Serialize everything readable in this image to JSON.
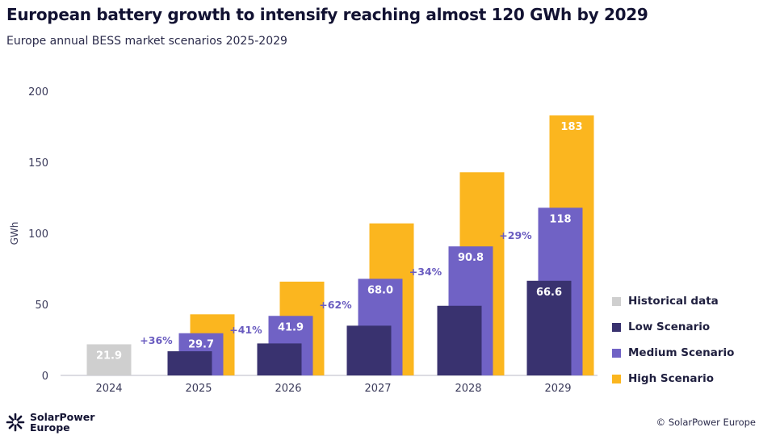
{
  "title": "European battery growth to intensify reaching almost 120 GWh by 2029",
  "subtitle": "Europe annual BESS market scenarios 2025-2029",
  "chart_data": {
    "type": "bar",
    "ylabel": "GWh",
    "ylim": [
      0,
      200
    ],
    "yticks": [
      "0",
      "50",
      "100",
      "150",
      "200"
    ],
    "categories": [
      "2024",
      "2025",
      "2026",
      "2027",
      "2028",
      "2029"
    ],
    "series": [
      {
        "name": "Historical data",
        "color": "#cfcfcf",
        "values": [
          21.9,
          null,
          null,
          null,
          null,
          null
        ],
        "labels": [
          "21.9",
          "",
          "",
          "",
          "",
          ""
        ]
      },
      {
        "name": "Low Scenario",
        "color": "#39326f",
        "values": [
          null,
          17,
          22.5,
          35,
          49,
          66.6
        ],
        "labels": [
          "",
          "",
          "",
          "",
          "",
          "66.6"
        ]
      },
      {
        "name": "Medium Scenario",
        "color": "#7062c5",
        "values": [
          null,
          29.7,
          41.9,
          68.0,
          90.8,
          118
        ],
        "labels": [
          "",
          "29.7",
          "41.9",
          "68.0",
          "90.8",
          "118"
        ]
      },
      {
        "name": "High Scenario",
        "color": "#fbb61f",
        "values": [
          null,
          43,
          66,
          107,
          143,
          183
        ],
        "labels": [
          "",
          "",
          "",
          "",
          "",
          "183"
        ]
      }
    ],
    "growth_labels": [
      "+36%",
      "+41%",
      "+62%",
      "+34%",
      "+29%"
    ]
  },
  "legend": [
    {
      "label": "Historical data",
      "color": "#cfcfcf"
    },
    {
      "label": "Low Scenario",
      "color": "#39326f"
    },
    {
      "label": "Medium Scenario",
      "color": "#7062c5"
    },
    {
      "label": "High Scenario",
      "color": "#fbb61f"
    }
  ],
  "brand": {
    "line1": "SolarPower",
    "line2": "Europe"
  },
  "copyright": "© SolarPower Europe"
}
